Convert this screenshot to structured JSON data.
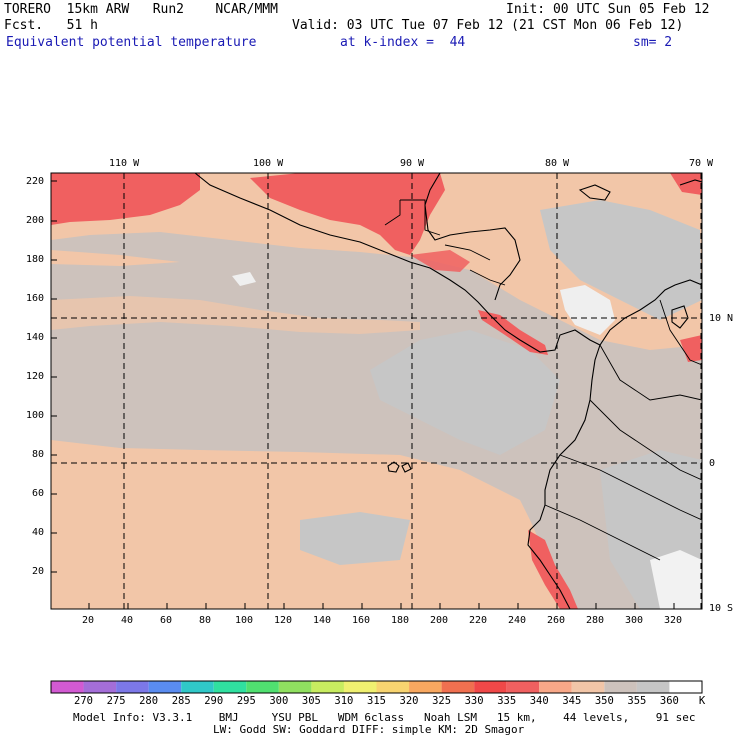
{
  "header": {
    "model": "TORERO  15km ARW   Run2    NCAR/MMM",
    "init": "Init: 00 UTC Sun 05 Feb 12",
    "fcst": "Fcst.   51 h",
    "valid": "Valid: 03 UTC Tue 07 Feb 12 (21 CST Mon 06 Feb 12)",
    "field": "Equivalent potential temperature",
    "level": "at k-index =  44",
    "smooth": "sm= 2"
  },
  "map": {
    "top_lon_labels": [
      "110 W",
      "100 W",
      "90 W",
      "80 W",
      "70 W"
    ],
    "right_lat_labels": [
      "10 N",
      "0",
      "10 S"
    ],
    "left_grid_labels": [
      "220",
      "200",
      "180",
      "160",
      "140",
      "120",
      "100",
      "80",
      "60",
      "40",
      "20"
    ],
    "bottom_grid_labels": [
      "20",
      "40",
      "60",
      "80",
      "100",
      "120",
      "140",
      "160",
      "180",
      "200",
      "220",
      "240",
      "260",
      "280",
      "300",
      "320"
    ]
  },
  "colorbar": {
    "labels": [
      "270",
      "275",
      "280",
      "285",
      "290",
      "295",
      "300",
      "305",
      "310",
      "315",
      "320",
      "325",
      "330",
      "335",
      "340",
      "345",
      "350",
      "355",
      "360"
    ],
    "unit": "K",
    "colors": [
      "#d25ad2",
      "#a46ed8",
      "#7c78e8",
      "#5a8cf0",
      "#30c8c8",
      "#30e0a0",
      "#50e070",
      "#90e060",
      "#c8ec60",
      "#f0f070",
      "#f8d470",
      "#f8a860",
      "#f07050",
      "#f04848",
      "#f06060",
      "#f8a888",
      "#f2c6a8",
      "#cdc2bc",
      "#c6c6c6",
      "#ffffff"
    ]
  },
  "footer": {
    "line1": "Model Info: V3.3.1    BMJ     YSU PBL   WDM 6class   Noah LSM   15 km,    44 levels,    91 sec",
    "line2": "LW: Godd SW: Goddard DIFF: simple KM: 2D Smagor"
  }
}
